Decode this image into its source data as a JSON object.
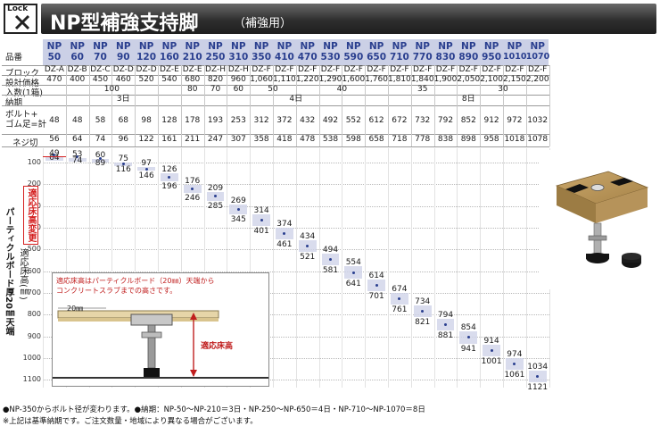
{
  "header": {
    "logo_text": "Lock",
    "title": "NP型補強支持脚",
    "subtitle": "（補強用）"
  },
  "row_labels": {
    "model": "品番",
    "block": "ブロック",
    "price": "設計価格",
    "quantity": "入数(1箱)",
    "delivery": "納期",
    "bolt_rubber_1": "ボルト+",
    "bolt_rubber_2": "ゴム足=計",
    "thread": "ネジ切"
  },
  "models": [
    {
      "np": "NP",
      "num": "50",
      "block": "DZ-A",
      "price": "470",
      "bolt": "48",
      "thread": "56",
      "min": "49",
      "max": "64",
      "max2": ""
    },
    {
      "np": "NP",
      "num": "60",
      "block": "DZ-B",
      "price": "400",
      "bolt": "48",
      "thread": "64",
      "min": "53",
      "max": "74",
      "max2": ""
    },
    {
      "np": "NP",
      "num": "70",
      "block": "DZ-C",
      "price": "450",
      "bolt": "58",
      "thread": "74",
      "min": "60",
      "max": "89",
      "max2": ""
    },
    {
      "np": "NP",
      "num": "90",
      "block": "DZ-D",
      "price": "460",
      "bolt": "68",
      "thread": "96",
      "min": "75",
      "max": "116",
      "max2": ""
    },
    {
      "np": "NP",
      "num": "120",
      "block": "DZ-D",
      "price": "520",
      "bolt": "98",
      "thread": "122",
      "min": "97",
      "max": "146",
      "max2": ""
    },
    {
      "np": "NP",
      "num": "160",
      "block": "DZ-E",
      "price": "540",
      "bolt": "128",
      "thread": "161",
      "min": "126",
      "max": "196",
      "max2": ""
    },
    {
      "np": "NP",
      "num": "210",
      "block": "DZ-E",
      "price": "680",
      "bolt": "178",
      "thread": "211",
      "min": "176",
      "max": "246",
      "max2": ""
    },
    {
      "np": "NP",
      "num": "250",
      "block": "DZ-H",
      "price": "820",
      "bolt": "193",
      "thread": "247",
      "min": "209",
      "max": "285",
      "max2": ""
    },
    {
      "np": "NP",
      "num": "310",
      "block": "DZ-H",
      "price": "960",
      "bolt": "253",
      "thread": "307",
      "min": "269",
      "max": "345",
      "max2": ""
    },
    {
      "np": "NP",
      "num": "350",
      "block": "DZ-F",
      "price": "1,060",
      "bolt": "312",
      "thread": "358",
      "min": "314",
      "max": "401",
      "max2": ""
    },
    {
      "np": "NP",
      "num": "410",
      "block": "DZ-F",
      "price": "1,110",
      "bolt": "372",
      "thread": "418",
      "min": "374",
      "max": "461",
      "max2": ""
    },
    {
      "np": "NP",
      "num": "470",
      "block": "DZ-F",
      "price": "1,220",
      "bolt": "432",
      "thread": "478",
      "min": "434",
      "max": "521",
      "max2": ""
    },
    {
      "np": "NP",
      "num": "530",
      "block": "DZ-F",
      "price": "1,290",
      "bolt": "492",
      "thread": "538",
      "min": "494",
      "max": "581",
      "max2": ""
    },
    {
      "np": "NP",
      "num": "590",
      "block": "DZ-F",
      "price": "1,600",
      "bolt": "552",
      "thread": "598",
      "min": "554",
      "max": "641",
      "max2": ""
    },
    {
      "np": "NP",
      "num": "650",
      "block": "DZ-F",
      "price": "1,760",
      "bolt": "612",
      "thread": "658",
      "min": "614",
      "max": "701",
      "max2": ""
    },
    {
      "np": "NP",
      "num": "710",
      "block": "DZ-F",
      "price": "1,810",
      "bolt": "672",
      "thread": "718",
      "min": "674",
      "max": "761",
      "max2": ""
    },
    {
      "np": "NP",
      "num": "770",
      "block": "DZ-F",
      "price": "1,840",
      "bolt": "732",
      "thread": "778",
      "min": "734",
      "max": "821",
      "max2": ""
    },
    {
      "np": "NP",
      "num": "830",
      "block": "DZ-F",
      "price": "1,900",
      "bolt": "792",
      "thread": "838",
      "min": "794",
      "max": "881",
      "max2": ""
    },
    {
      "np": "NP",
      "num": "890",
      "block": "DZ-F",
      "price": "2,050",
      "bolt": "852",
      "thread": "898",
      "min": "854",
      "max": "941",
      "max2": ""
    },
    {
      "np": "NP",
      "num": "950",
      "block": "DZ-F",
      "price": "2,100",
      "bolt": "912",
      "thread": "958",
      "min": "914",
      "max": "1001",
      "max2": ""
    },
    {
      "np": "NP",
      "num": "1010",
      "block": "DZ-F",
      "price": "2,150",
      "bolt": "972",
      "thread": "1018",
      "min": "974",
      "max": "1061",
      "max2": ""
    },
    {
      "np": "NP",
      "num": "1070",
      "block": "DZ-F",
      "price": "2,200",
      "bolt": "1032",
      "thread": "1078",
      "min": "1034",
      "max": "1121",
      "max2": ""
    }
  ],
  "quantity_groups": [
    {
      "label": "100",
      "span": 6
    },
    {
      "label": "80",
      "span": 1
    },
    {
      "label": "70",
      "span": 1
    },
    {
      "label": "60",
      "span": 1
    },
    {
      "label": "50",
      "span": 2
    },
    {
      "label": "40",
      "span": 4
    },
    {
      "label": "35",
      "span": 3
    },
    {
      "label": "30",
      "span": 4
    }
  ],
  "delivery_groups": [
    {
      "label": "3日",
      "span": 7
    },
    {
      "label": "4日",
      "span": 8
    },
    {
      "label": "8日",
      "span": 7
    }
  ],
  "y_ticks": [
    "100",
    "200",
    "300",
    "400",
    "500",
    "600",
    "700",
    "800",
    "900",
    "1000",
    "1100"
  ],
  "side_labels": {
    "vertical_main": "パーティクルボード厚20㎜天端",
    "vertical_sub": "適応床高(㎜)",
    "red_box": "適応床高変更"
  },
  "inset": {
    "note_line1": "適応床高はパーティクルボード（20㎜）天端から",
    "note_line2": "コンクリートスラブまでの高さです。",
    "dim_label": "20㎜",
    "height_label": "適応床高"
  },
  "footer": {
    "line1": "●NP-350からボルト径が変わります。●納期：NP-50〜NP-210＝3日・NP-250〜NP-650＝4日・NP-710〜NP-1070＝8日",
    "line2": "※上記は基準納期です。ご注文数量・地域により異なる場合がございます。"
  },
  "colors": {
    "title_bar": "#2e2e2e",
    "model_header_bg": "#cbd0e6",
    "model_text": "#2a3f8f",
    "band": "#cfd3e8",
    "note_red": "#d42020"
  }
}
